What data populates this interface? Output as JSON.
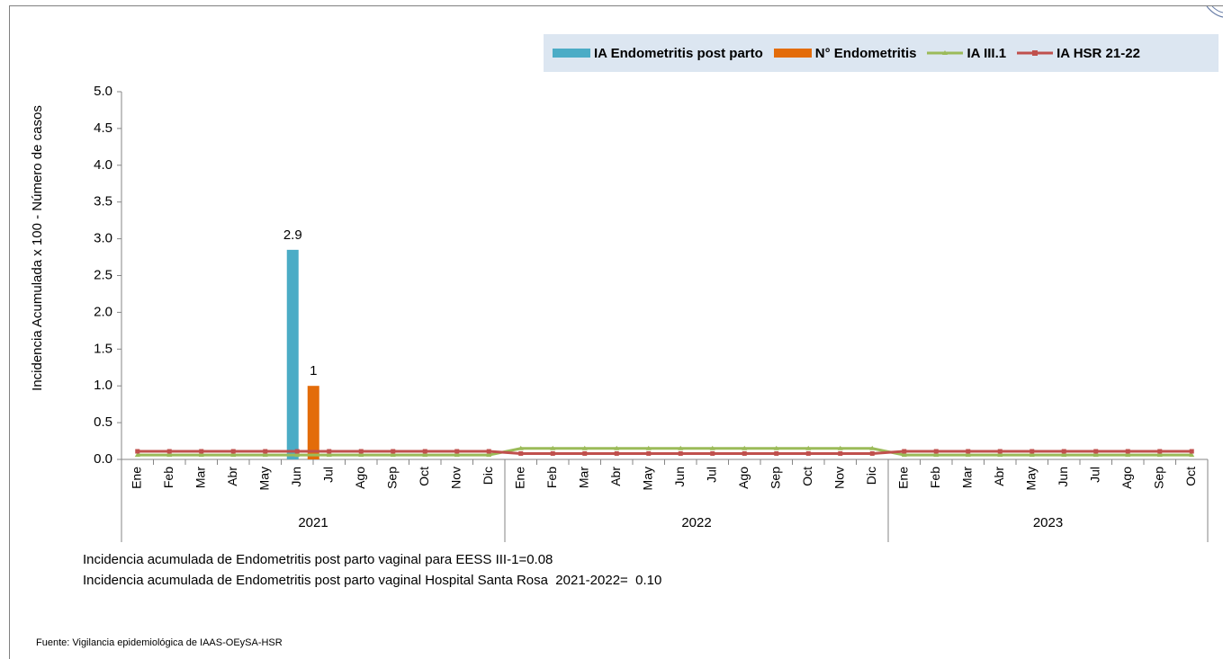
{
  "chart_data": {
    "type": "bar",
    "ylabel": "Incidencia Acumulada x 100 - Número de casos",
    "ylim": [
      0,
      5
    ],
    "yticks": [
      "0.0",
      "0.5",
      "1.0",
      "1.5",
      "2.0",
      "2.5",
      "3.0",
      "3.5",
      "4.0",
      "4.5",
      "5.0"
    ],
    "months": [
      "Ene",
      "Feb",
      "Mar",
      "Abr",
      "May",
      "Jun",
      "Jul",
      "Ago",
      "Sep",
      "Oct",
      "Nov",
      "Dic",
      "Ene",
      "Feb",
      "Mar",
      "Abr",
      "May",
      "Jun",
      "Jul",
      "Ago",
      "Sep",
      "Oct",
      "Nov",
      "Dic",
      "Ene",
      "Feb",
      "Mar",
      "Abr",
      "May",
      "Jun",
      "Jul",
      "Ago",
      "Sep",
      "Oct"
    ],
    "years": [
      {
        "label": "2021",
        "count": 12
      },
      {
        "label": "2022",
        "count": 12
      },
      {
        "label": "2023",
        "count": 10
      }
    ],
    "series": [
      {
        "name": "IA Endometritis post parto",
        "kind": "bar",
        "color": "#4bacc6",
        "values": [
          0,
          0,
          0,
          0,
          0,
          2.85,
          0,
          0,
          0,
          0,
          0,
          0,
          0,
          0,
          0,
          0,
          0,
          0,
          0,
          0,
          0,
          0,
          0,
          0,
          0,
          0,
          0,
          0,
          0,
          0,
          0,
          0,
          0,
          0
        ],
        "labels": {
          "5": "2.9"
        }
      },
      {
        "name": "N°  Endometritis",
        "kind": "bar",
        "color": "#e36c0a",
        "values": [
          0,
          0,
          0,
          0,
          0,
          1,
          0,
          0,
          0,
          0,
          0,
          0,
          0,
          0,
          0,
          0,
          0,
          0,
          0,
          0,
          0,
          0,
          0,
          0,
          0,
          0,
          0,
          0,
          0,
          0,
          0,
          0,
          0,
          0
        ],
        "labels": {
          "5": "1"
        }
      },
      {
        "name": "IA  III.1",
        "kind": "line",
        "color": "#9bbb59",
        "values": [
          0.06,
          0.06,
          0.06,
          0.06,
          0.06,
          0.06,
          0.06,
          0.06,
          0.06,
          0.06,
          0.06,
          0.06,
          0.15,
          0.15,
          0.15,
          0.15,
          0.15,
          0.15,
          0.15,
          0.15,
          0.15,
          0.15,
          0.15,
          0.15,
          0.06,
          0.06,
          0.06,
          0.06,
          0.06,
          0.06,
          0.06,
          0.06,
          0.06,
          0.06
        ]
      },
      {
        "name": "IA HSR 21-22",
        "kind": "line",
        "color": "#c0504d",
        "values": [
          0.11,
          0.11,
          0.11,
          0.11,
          0.11,
          0.11,
          0.11,
          0.11,
          0.11,
          0.11,
          0.11,
          0.11,
          0.08,
          0.08,
          0.08,
          0.08,
          0.08,
          0.08,
          0.08,
          0.08,
          0.08,
          0.08,
          0.08,
          0.08,
          0.11,
          0.11,
          0.11,
          0.11,
          0.11,
          0.11,
          0.11,
          0.11,
          0.11,
          0.11
        ]
      }
    ],
    "legend_position": "top-right",
    "grid": false
  },
  "notes": {
    "line1": "Incidencia acumulada de Endometritis post parto vaginal para EESS III-1=0.08",
    "line2": "Incidencia acumulada de Endometritis post parto vaginal Hospital Santa Rosa  2021-2022=  0.10"
  },
  "source": "Fuente: Vigilancia epidemiológica de IAAS-OEySA-HSR"
}
